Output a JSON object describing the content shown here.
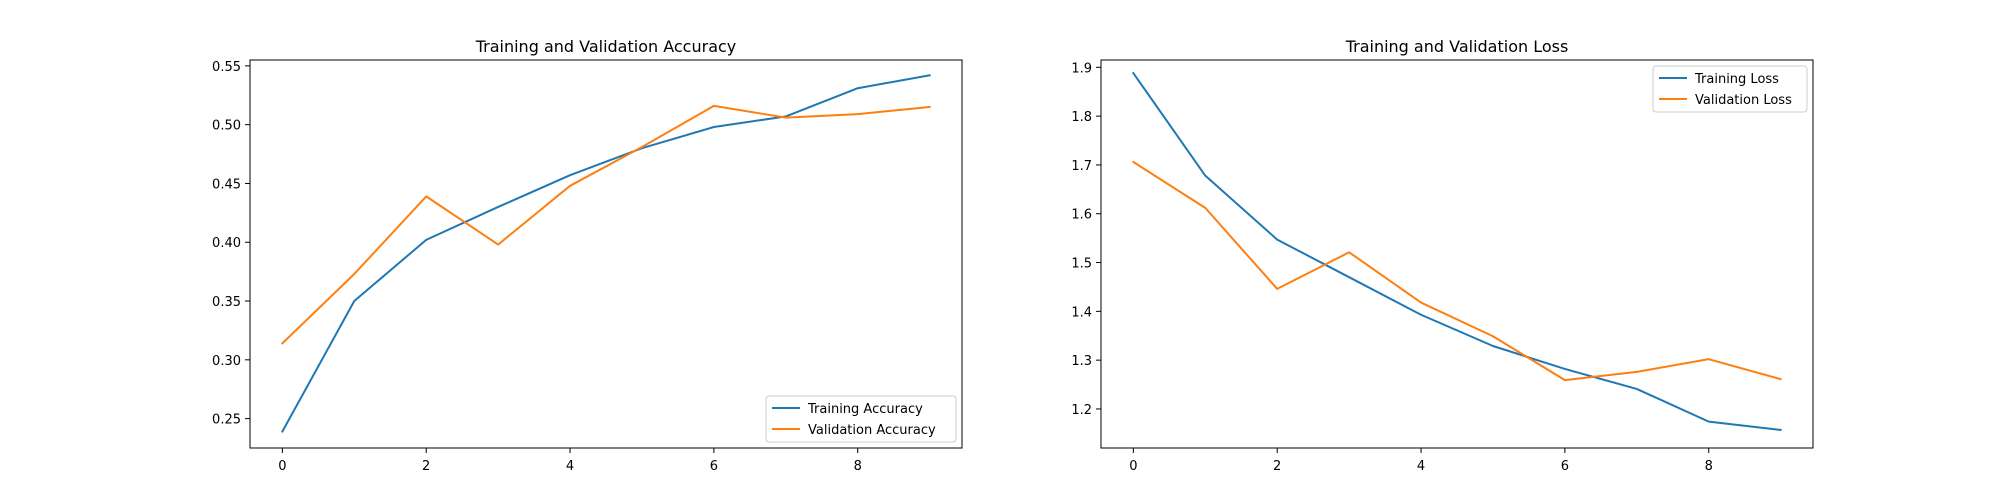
{
  "chart_data": [
    {
      "type": "line",
      "title": "Training and Validation Accuracy",
      "xlabel": "",
      "ylabel": "",
      "x": [
        0,
        1,
        2,
        3,
        4,
        5,
        6,
        7,
        8,
        9
      ],
      "xlim": [
        -0.45,
        9.45
      ],
      "ylim": [
        0.225,
        0.555
      ],
      "xticks": [
        0,
        2,
        4,
        6,
        8
      ],
      "yticks": [
        0.25,
        0.3,
        0.35,
        0.4,
        0.45,
        0.5,
        0.55
      ],
      "ytick_labels": [
        "0.25",
        "0.30",
        "0.35",
        "0.40",
        "0.45",
        "0.50",
        "0.55"
      ],
      "grid": false,
      "legend_position": "lower-right",
      "series": [
        {
          "name": "Training Accuracy",
          "color": "#1f77b4",
          "values": [
            0.239,
            0.35,
            0.402,
            0.43,
            0.457,
            0.48,
            0.498,
            0.507,
            0.531,
            0.542
          ]
        },
        {
          "name": "Validation Accuracy",
          "color": "#ff7f0e",
          "values": [
            0.314,
            0.373,
            0.439,
            0.398,
            0.448,
            0.481,
            0.516,
            0.506,
            0.509,
            0.515
          ]
        }
      ]
    },
    {
      "type": "line",
      "title": "Training and Validation Loss",
      "xlabel": "",
      "ylabel": "",
      "x": [
        0,
        1,
        2,
        3,
        4,
        5,
        6,
        7,
        8,
        9
      ],
      "xlim": [
        -0.45,
        9.45
      ],
      "ylim": [
        1.12,
        1.915
      ],
      "xticks": [
        0,
        2,
        4,
        6,
        8
      ],
      "yticks": [
        1.2,
        1.3,
        1.4,
        1.5,
        1.6,
        1.7,
        1.8,
        1.9
      ],
      "ytick_labels": [
        "1.2",
        "1.3",
        "1.4",
        "1.5",
        "1.6",
        "1.7",
        "1.8",
        "1.9"
      ],
      "grid": false,
      "legend_position": "upper-right",
      "series": [
        {
          "name": "Training Loss",
          "color": "#1f77b4",
          "values": [
            1.888,
            1.678,
            1.547,
            1.47,
            1.393,
            1.329,
            1.282,
            1.241,
            1.174,
            1.157
          ]
        },
        {
          "name": "Validation Loss",
          "color": "#ff7f0e",
          "values": [
            1.706,
            1.612,
            1.446,
            1.521,
            1.418,
            1.349,
            1.259,
            1.276,
            1.302,
            1.261
          ]
        }
      ]
    }
  ]
}
